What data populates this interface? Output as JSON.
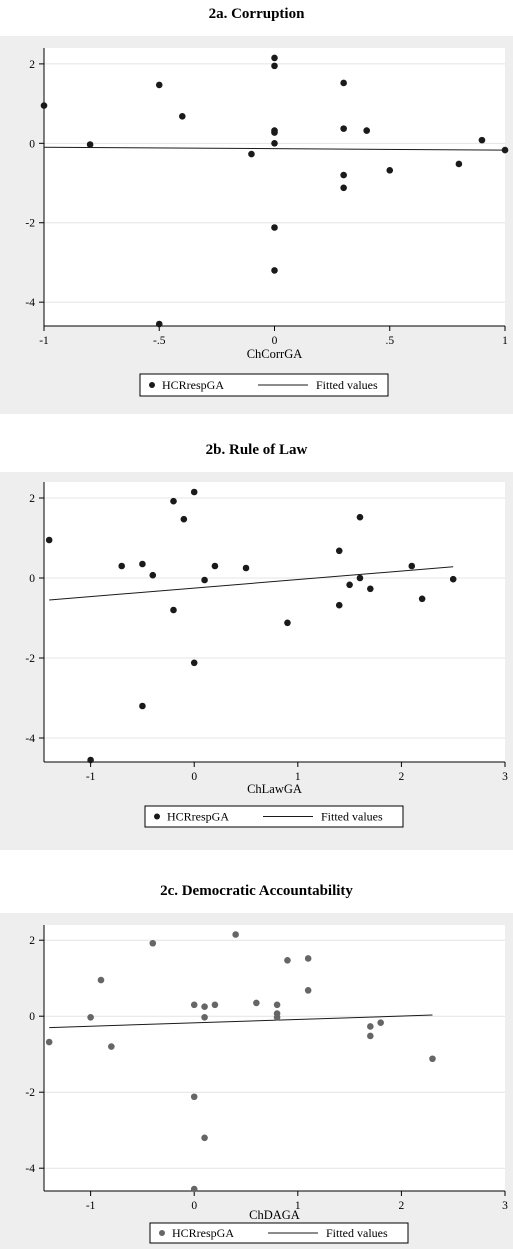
{
  "panels": [
    {
      "title": "2a. Corruption",
      "chart_data": {
        "type": "scatter",
        "xlabel": "ChCorrGA",
        "ylabel": "",
        "xlim": [
          -1,
          1
        ],
        "ylim": [
          -4.6,
          2.4
        ],
        "x_ticks": [
          -1,
          -0.5,
          0,
          0.5,
          1
        ],
        "x_tick_labels": [
          "-1",
          "-.5",
          "0",
          ".5",
          "1"
        ],
        "y_ticks": [
          -4,
          -2,
          0,
          2
        ],
        "y_tick_labels": [
          "-4",
          "-2",
          "0",
          "2"
        ],
        "grid": "horizontal",
        "legend": "bottom",
        "series": [
          {
            "name": "HCRrespGA",
            "kind": "points",
            "color": "#1a1a1a",
            "points": [
              [
                -1,
                0.95
              ],
              [
                -0.8,
                -0.03
              ],
              [
                -0.5,
                1.47
              ],
              [
                -0.5,
                -4.55
              ],
              [
                -0.4,
                0.68
              ],
              [
                -0.1,
                -0.27
              ],
              [
                0,
                2.15
              ],
              [
                0,
                1.95
              ],
              [
                0,
                0.32
              ],
              [
                0,
                0.27
              ],
              [
                0,
                0
              ],
              [
                0,
                -2.12
              ],
              [
                0,
                -3.2
              ],
              [
                0.3,
                1.52
              ],
              [
                0.3,
                0.37
              ],
              [
                0.3,
                -0.8
              ],
              [
                0.3,
                -1.12
              ],
              [
                0.4,
                0.32
              ],
              [
                0.5,
                -0.68
              ],
              [
                0.8,
                -0.52
              ],
              [
                0.9,
                0.08
              ],
              [
                1,
                -0.17
              ]
            ]
          },
          {
            "name": "Fitted values",
            "kind": "line",
            "color": "#1a1a1a",
            "points": [
              [
                -1,
                -0.1
              ],
              [
                1,
                -0.17
              ]
            ]
          }
        ]
      }
    },
    {
      "title": "2b. Rule of Law",
      "chart_data": {
        "type": "scatter",
        "xlabel": "ChLawGA",
        "ylabel": "",
        "xlim": [
          -1.45,
          3
        ],
        "ylim": [
          -4.6,
          2.4
        ],
        "x_ticks": [
          -1,
          0,
          1,
          2,
          3
        ],
        "x_tick_labels": [
          "-1",
          "0",
          "1",
          "2",
          "3"
        ],
        "y_ticks": [
          -4,
          -2,
          0,
          2
        ],
        "y_tick_labels": [
          "-4",
          "-2",
          "0",
          "2"
        ],
        "grid": "horizontal",
        "legend": "bottom",
        "series": [
          {
            "name": "HCRrespGA",
            "kind": "points",
            "color": "#1a1a1a",
            "points": [
              [
                -1.4,
                0.95
              ],
              [
                -1,
                -4.55
              ],
              [
                -0.7,
                0.3
              ],
              [
                -0.5,
                0.35
              ],
              [
                -0.5,
                -3.2
              ],
              [
                -0.4,
                0.07
              ],
              [
                -0.2,
                1.92
              ],
              [
                -0.2,
                -0.8
              ],
              [
                -0.1,
                1.47
              ],
              [
                0,
                2.15
              ],
              [
                0,
                -2.12
              ],
              [
                0.1,
                -0.05
              ],
              [
                0.2,
                0.3
              ],
              [
                0.5,
                0.25
              ],
              [
                0.9,
                -1.12
              ],
              [
                1.4,
                0.68
              ],
              [
                1.4,
                -0.68
              ],
              [
                1.5,
                -0.17
              ],
              [
                1.6,
                1.52
              ],
              [
                1.6,
                0
              ],
              [
                1.7,
                -0.27
              ],
              [
                2.1,
                0.3
              ],
              [
                2.2,
                -0.52
              ],
              [
                2.5,
                -0.03
              ]
            ]
          },
          {
            "name": "Fitted values",
            "kind": "line",
            "color": "#1a1a1a",
            "points": [
              [
                -1.4,
                -0.55
              ],
              [
                2.5,
                0.28
              ]
            ]
          }
        ]
      }
    },
    {
      "title": "2c. Democratic Accountability",
      "chart_data": {
        "type": "scatter",
        "xlabel": "ChDAGA",
        "ylabel": "",
        "xlim": [
          -1.45,
          3
        ],
        "ylim": [
          -4.6,
          2.4
        ],
        "x_ticks": [
          -1,
          0,
          1,
          2,
          3
        ],
        "x_tick_labels": [
          "-1",
          "0",
          "1",
          "2",
          "3"
        ],
        "y_ticks": [
          -4,
          -2,
          0,
          2
        ],
        "y_tick_labels": [
          "-4",
          "-2",
          "0",
          "2"
        ],
        "grid": "horizontal",
        "legend": "bottom",
        "series": [
          {
            "name": "HCRrespGA",
            "kind": "points",
            "color": "#666666",
            "points": [
              [
                -1.4,
                -0.68
              ],
              [
                -1,
                -0.03
              ],
              [
                -0.9,
                0.95
              ],
              [
                -0.8,
                -0.8
              ],
              [
                -0.4,
                1.92
              ],
              [
                0,
                0.3
              ],
              [
                0,
                -2.12
              ],
              [
                0,
                -4.55
              ],
              [
                0.1,
                0.25
              ],
              [
                0.1,
                -0.03
              ],
              [
                0.1,
                -3.2
              ],
              [
                0.2,
                0.3
              ],
              [
                0.4,
                2.15
              ],
              [
                0.6,
                0.35
              ],
              [
                0.8,
                0.3
              ],
              [
                0.8,
                0.07
              ],
              [
                0.8,
                -0.03
              ],
              [
                0.9,
                1.47
              ],
              [
                1.1,
                1.52
              ],
              [
                1.1,
                0.68
              ],
              [
                1.7,
                -0.27
              ],
              [
                1.7,
                -0.52
              ],
              [
                1.8,
                -0.17
              ],
              [
                2.3,
                -1.12
              ]
            ]
          },
          {
            "name": "Fitted values",
            "kind": "line",
            "color": "#1a1a1a",
            "points": [
              [
                -1.4,
                -0.3
              ],
              [
                2.3,
                0.03
              ]
            ]
          }
        ]
      }
    }
  ]
}
